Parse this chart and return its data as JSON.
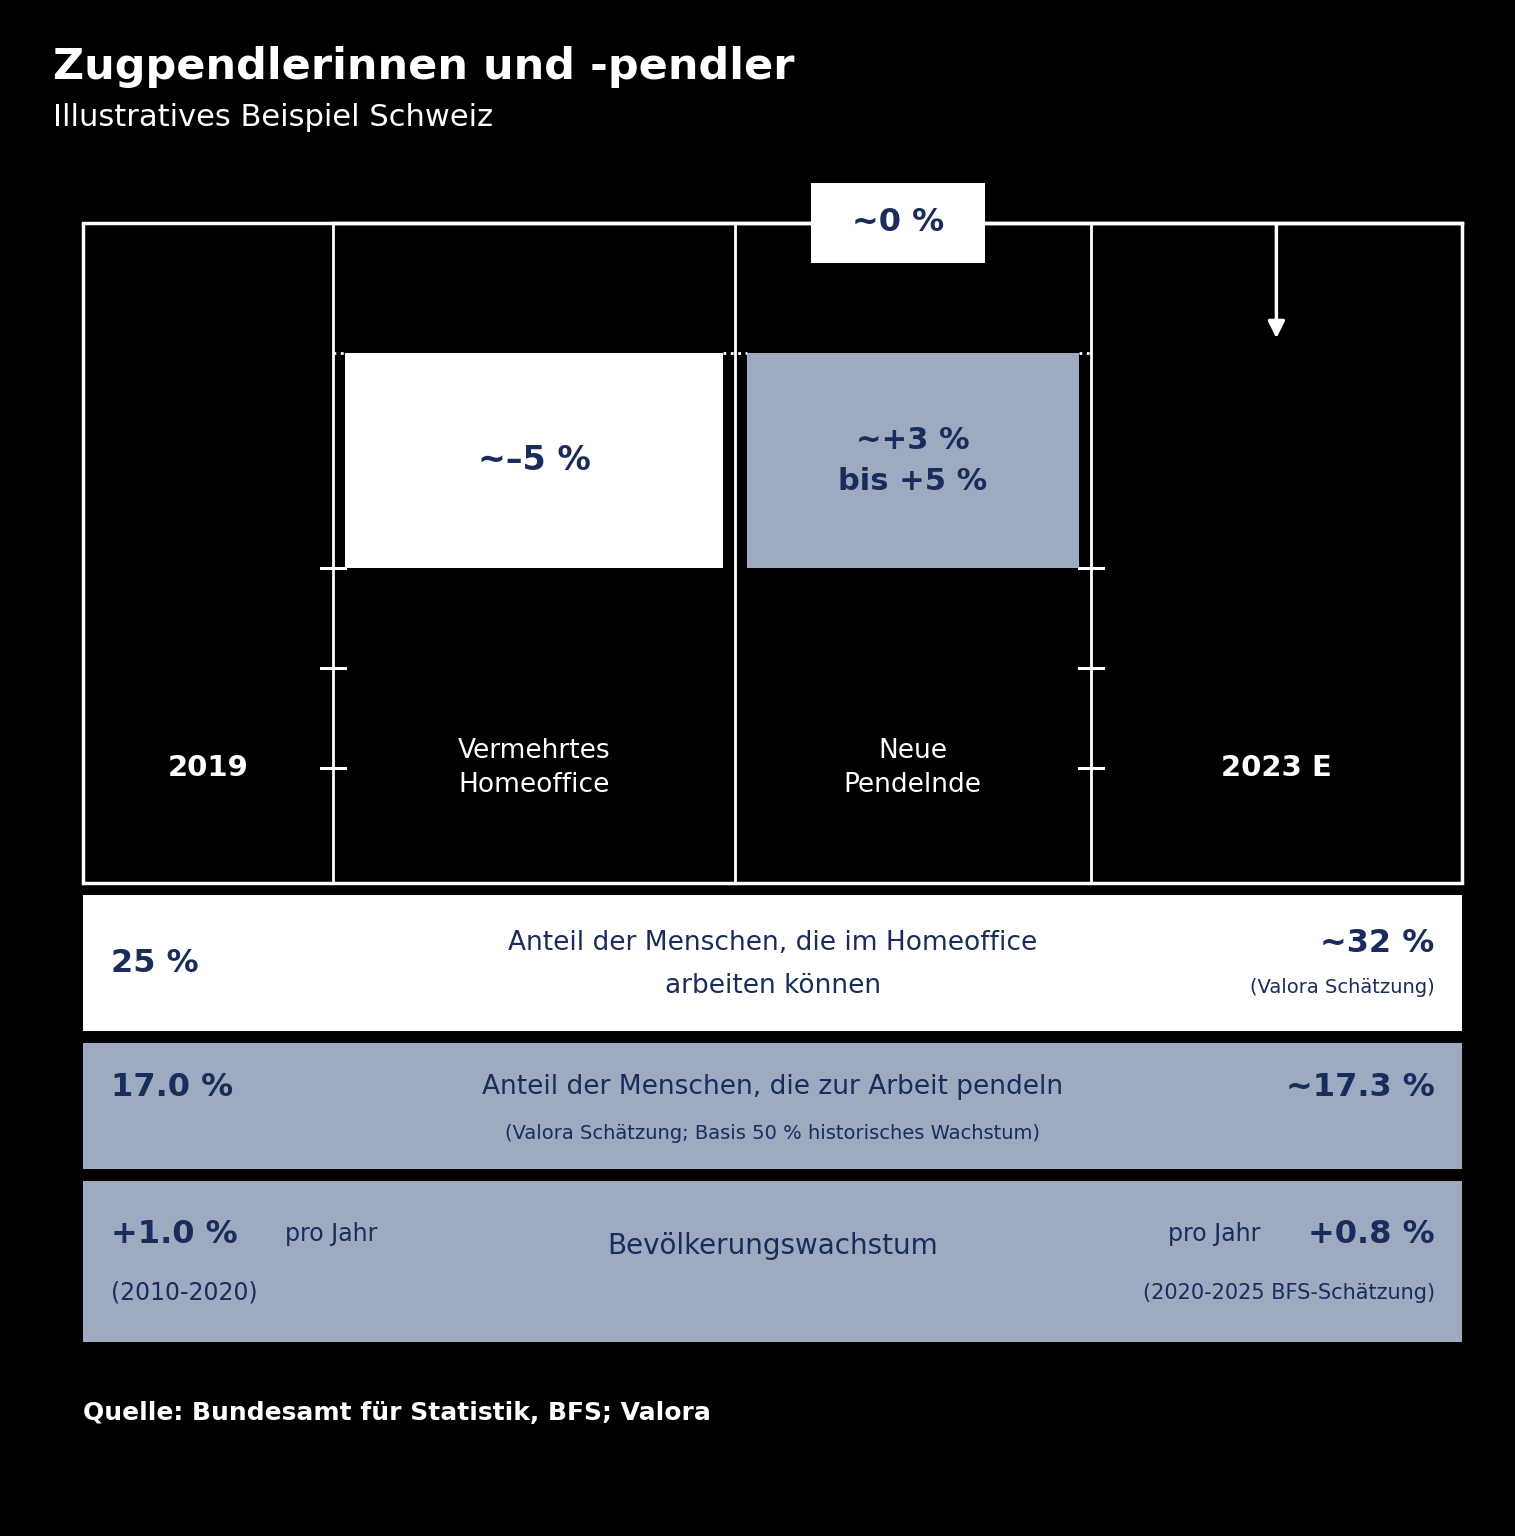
{
  "title_bold": "Zugpendlerinnen und -pendler",
  "title_sub": "Illustratives Beispiel Schweiz",
  "bg_color": "#000000",
  "text_color_dark": "#1a2c5b",
  "text_color_white": "#ffffff",
  "box_white": "#ffffff",
  "box_gray": "#9daabf",
  "box_inner_gray": "#9daabf",
  "label_2019": "2019",
  "label_2023": "2023 E",
  "label_homeoffice": "Vermehrtes\nHomeoffice",
  "label_pendelnde": "Neue\nPendelnde",
  "pct_center": "~0 %",
  "pct_homeoffice": "~–5 %",
  "pct_pendelnde": "~+3 %\nbis +5 %",
  "row1_left_bold": "25 %",
  "row1_center_line1": "Anteil der Menschen, die im Homeoffice",
  "row1_center_line2": "arbeiten können",
  "row1_right_bold": "~32 %",
  "row1_right_sub": "(Valora Schätzung)",
  "row2_left_bold": "17.0 %",
  "row2_center": "Anteil der Menschen, die zur Arbeit pendeln",
  "row2_right_bold": "~17.3 %",
  "row2_sub": "(Valora Schätzung; Basis 50 % historisches Wachstum)",
  "row3_left_bold": "+1.0 %",
  "row3_left_sub1": "pro Jahr",
  "row3_left_sub2": "(2010-2020)",
  "row3_center": "Bevölkerungswachstum",
  "row3_right_bold": "+0.8 %",
  "row3_right_sub1": "pro Jahr",
  "row3_right_sub2": "(2020-2025 BFS-Schätzung)",
  "source": "Quelle: Bundesamt für Statistik, BFS; Valora"
}
